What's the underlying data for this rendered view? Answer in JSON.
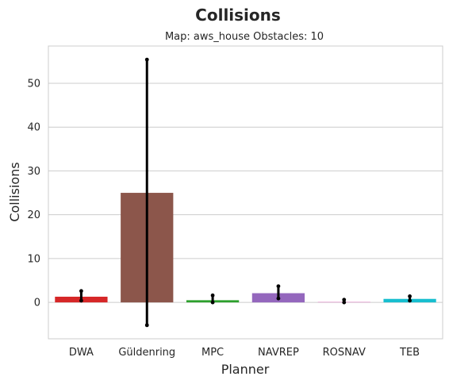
{
  "chart_data": {
    "type": "bar",
    "title": "Collisions",
    "subtitle": "Map: aws_house Obstacles: 10",
    "xlabel": "Planner",
    "ylabel": "Collisions",
    "categories": [
      "DWA",
      "Güldenring",
      "MPC",
      "NAVREP",
      "ROSNAV",
      "TEB"
    ],
    "values": [
      1.3,
      25.0,
      0.5,
      2.1,
      0.1,
      0.8
    ],
    "error_low": [
      0.4,
      -5.2,
      0.0,
      0.9,
      0.0,
      0.4
    ],
    "error_high": [
      2.6,
      55.4,
      1.6,
      3.7,
      0.6,
      1.4
    ],
    "colors": [
      "#d62728",
      "#8c564b",
      "#2ca02c",
      "#9467bd",
      "#e377c2",
      "#17becf"
    ],
    "ylim": [
      -8.3,
      58.5
    ],
    "yticks": [
      0,
      10,
      20,
      30,
      40,
      50
    ],
    "grid": true,
    "legend": "none"
  }
}
